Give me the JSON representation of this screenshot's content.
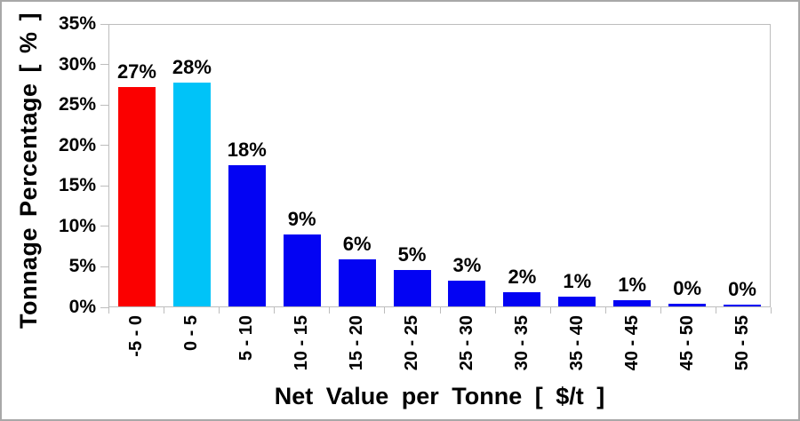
{
  "chart_data": {
    "type": "bar",
    "title": "",
    "xlabel": "Net Value per Tonne [ $/t ]",
    "ylabel": "Tonnage Percentage [ % ]",
    "categories": [
      "-5 - 0",
      "0 - 5",
      "5 - 10",
      "10 - 15",
      "15 - 20",
      "20 - 25",
      "25 - 30",
      "30 - 35",
      "35 - 40",
      "40 - 45",
      "45 - 50",
      "50 - 55"
    ],
    "values": [
      27.3,
      27.8,
      17.6,
      8.9,
      5.9,
      4.5,
      3.2,
      1.8,
      1.2,
      0.8,
      0.3,
      0.25
    ],
    "bar_labels": [
      "27%",
      "28%",
      "18%",
      "9%",
      "6%",
      "5%",
      "3%",
      "2%",
      "1%",
      "1%",
      "0%",
      "0%"
    ],
    "bar_colors": [
      "#fb0000",
      "#00c3f8",
      "#0303f3",
      "#0303f3",
      "#0303f3",
      "#0303f3",
      "#0303f3",
      "#0303f3",
      "#0303f3",
      "#0303f3",
      "#0303f3",
      "#0303f3"
    ],
    "y_tick_labels": [
      "35%",
      "30%",
      "25%",
      "20%",
      "15%",
      "10%",
      "5%",
      "0%"
    ],
    "ylim": [
      0,
      35
    ],
    "grid": false,
    "legend": false
  },
  "colors": {
    "axis": "#bdbdbd",
    "text": "#000000",
    "background": "#ffffff",
    "red_bar": "#fb0000",
    "cyan_bar": "#00c3f8",
    "blue_bar": "#0303f3"
  }
}
